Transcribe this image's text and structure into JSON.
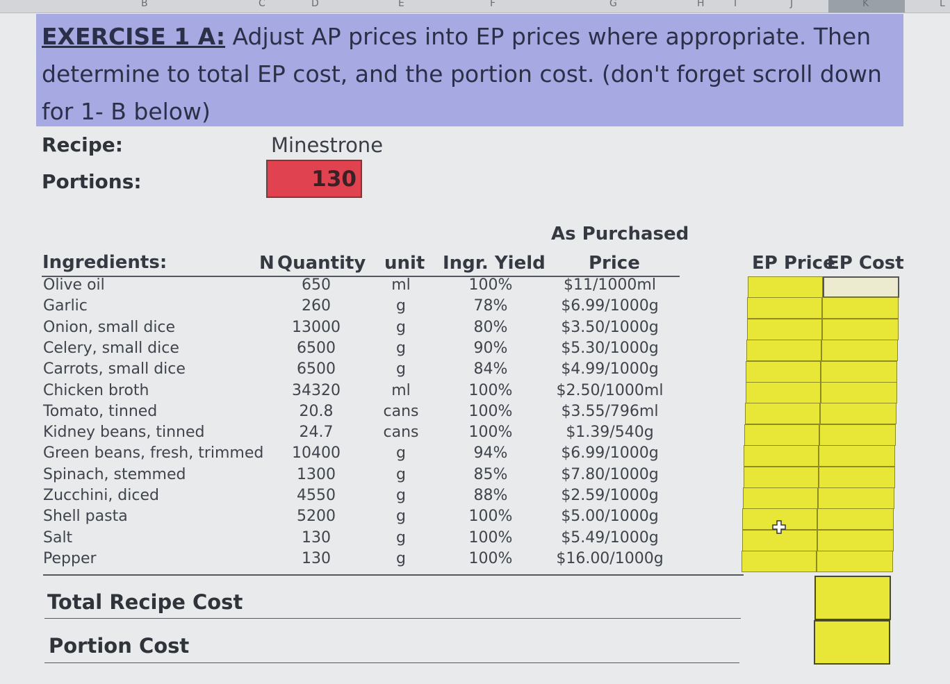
{
  "column_headers": [
    "B",
    "C",
    "D",
    "E",
    "F",
    "G",
    "H",
    "I",
    "J",
    "K",
    "L"
  ],
  "exercise": {
    "title_bold": "EXERCISE 1 A:",
    "text": " Adjust AP prices into EP prices where appropriate.  Then determine to total EP cost, and the portion cost. (don't forget scroll down for 1- B below)"
  },
  "recipe": {
    "label": "Recipe:",
    "value": "Minestrone"
  },
  "portions": {
    "label": "Portions:",
    "value": "130"
  },
  "headers": {
    "ingredients": "Ingredients:",
    "quantity_prefix": "N",
    "quantity": "Quantity",
    "unit": "unit",
    "yield": "Ingr. Yield",
    "ap_line1": "As Purchased",
    "ap_line2": "Price",
    "ep_price": "EP Price",
    "ep_cost": "EP Cost"
  },
  "ingredients": [
    {
      "name": "Olive oil",
      "qty": "650",
      "unit": "ml",
      "yield": "100%",
      "ap": "$11/1000ml"
    },
    {
      "name": "Garlic",
      "qty": "260",
      "unit": "g",
      "yield": "78%",
      "ap": "$6.99/1000g"
    },
    {
      "name": "Onion, small dice",
      "qty": "13000",
      "unit": "g",
      "yield": "80%",
      "ap": "$3.50/1000g"
    },
    {
      "name": "Celery, small dice",
      "qty": "6500",
      "unit": "g",
      "yield": "90%",
      "ap": "$5.30/1000g"
    },
    {
      "name": "Carrots, small dice",
      "qty": "6500",
      "unit": "g",
      "yield": "84%",
      "ap": "$4.99/1000g"
    },
    {
      "name": "Chicken broth",
      "qty": "34320",
      "unit": "ml",
      "yield": "100%",
      "ap": "$2.50/1000ml"
    },
    {
      "name": "Tomato, tinned",
      "qty": "20.8",
      "unit": "cans",
      "yield": "100%",
      "ap": "$3.55/796ml"
    },
    {
      "name": "Kidney beans, tinned",
      "qty": "24.7",
      "unit": "cans",
      "yield": "100%",
      "ap": "$1.39/540g"
    },
    {
      "name": "Green beans, fresh, trimmed",
      "qty": "10400",
      "unit": "g",
      "yield": "94%",
      "ap": "$6.99/1000g"
    },
    {
      "name": "Spinach, stemmed",
      "qty": "1300",
      "unit": "g",
      "yield": "85%",
      "ap": "$7.80/1000g"
    },
    {
      "name": "Zucchini, diced",
      "qty": "4550",
      "unit": "g",
      "yield": "88%",
      "ap": "$2.59/1000g"
    },
    {
      "name": "Shell pasta",
      "qty": "5200",
      "unit": "g",
      "yield": "100%",
      "ap": "$5.00/1000g"
    },
    {
      "name": "Salt",
      "qty": "130",
      "unit": "g",
      "yield": "100%",
      "ap": "$5.49/1000g"
    },
    {
      "name": "Pepper",
      "qty": "130",
      "unit": "g",
      "yield": "100%",
      "ap": "$16.00/1000g"
    }
  ],
  "footer": {
    "total_label": "Total Recipe Cost",
    "portion_label": "Portion Cost"
  },
  "colors": {
    "banner": "#a7aae2",
    "portions_fill": "#e0434f",
    "answer_fill": "#e8e636"
  },
  "icons": {
    "cursor": "plus-cursor-icon"
  }
}
